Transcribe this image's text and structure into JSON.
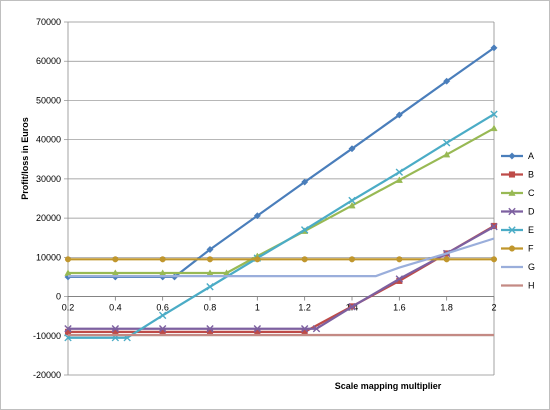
{
  "chart_data": {
    "type": "line",
    "title": "",
    "xlabel": "Scale mapping multiplier",
    "ylabel": "Profit/loss in Euros",
    "xlim": [
      0.2,
      2
    ],
    "ylim": [
      -20000,
      70000
    ],
    "x_ticks": [
      "0.2",
      "0.4",
      "0.6",
      "0.8",
      "1",
      "1.2",
      "1.4",
      "1.6",
      "1.8",
      "2"
    ],
    "y_ticks": [
      "-20000",
      "-10000",
      "0",
      "10000",
      "20000",
      "30000",
      "40000",
      "50000",
      "60000",
      "70000"
    ],
    "x_tick_values": [
      0.2,
      0.4,
      0.6,
      0.8,
      1.0,
      1.2,
      1.4,
      1.6,
      1.8,
      2.0
    ],
    "y_tick_values": [
      -20000,
      -10000,
      0,
      10000,
      20000,
      30000,
      40000,
      50000,
      60000,
      70000
    ],
    "grid": "horizontal",
    "legend_position": "right",
    "series": [
      {
        "name": "A",
        "color": "#4a7ebb",
        "marker": "diamond",
        "points": [
          [
            0.2,
            5000
          ],
          [
            0.4,
            5000
          ],
          [
            0.6,
            5000
          ],
          [
            0.65,
            5000
          ],
          [
            0.8,
            12000
          ],
          [
            1.0,
            20600
          ],
          [
            1.2,
            29200
          ],
          [
            1.4,
            37700
          ],
          [
            1.6,
            46300
          ],
          [
            1.8,
            54900
          ],
          [
            2.0,
            63400
          ]
        ]
      },
      {
        "name": "B",
        "color": "#be4b48",
        "marker": "square",
        "points": [
          [
            0.2,
            -9000
          ],
          [
            0.4,
            -9000
          ],
          [
            0.6,
            -9000
          ],
          [
            0.8,
            -9000
          ],
          [
            1.0,
            -9000
          ],
          [
            1.2,
            -9000
          ],
          [
            1.4,
            -2500
          ],
          [
            1.6,
            4000
          ],
          [
            1.8,
            11000
          ],
          [
            2.0,
            18000
          ]
        ]
      },
      {
        "name": "C",
        "color": "#98b954",
        "marker": "triangle",
        "points": [
          [
            0.2,
            6000
          ],
          [
            0.4,
            6000
          ],
          [
            0.6,
            6000
          ],
          [
            0.8,
            6000
          ],
          [
            0.87,
            6000
          ],
          [
            1.0,
            10300
          ],
          [
            1.2,
            16700
          ],
          [
            1.4,
            23200
          ],
          [
            1.6,
            29700
          ],
          [
            1.8,
            36200
          ],
          [
            2.0,
            42900
          ]
        ]
      },
      {
        "name": "D",
        "color": "#7d60a0",
        "marker": "x",
        "points": [
          [
            0.2,
            -8200
          ],
          [
            0.4,
            -8200
          ],
          [
            0.6,
            -8200
          ],
          [
            0.8,
            -8200
          ],
          [
            1.0,
            -8200
          ],
          [
            1.2,
            -8200
          ],
          [
            1.25,
            -8200
          ],
          [
            1.4,
            -2600
          ],
          [
            1.6,
            4500
          ],
          [
            1.8,
            11000
          ],
          [
            2.0,
            17800
          ]
        ]
      },
      {
        "name": "E",
        "color": "#4bacc6",
        "marker": "x",
        "points": [
          [
            0.2,
            -10500
          ],
          [
            0.4,
            -10500
          ],
          [
            0.45,
            -10500
          ],
          [
            0.6,
            -4800
          ],
          [
            0.8,
            2500
          ],
          [
            1.0,
            9800
          ],
          [
            1.2,
            17000
          ],
          [
            1.4,
            24500
          ],
          [
            1.6,
            31700
          ],
          [
            1.8,
            39200
          ],
          [
            2.0,
            46500
          ]
        ]
      },
      {
        "name": "F",
        "color": "#c0962c",
        "marker": "circle",
        "points": [
          [
            0.2,
            9500
          ],
          [
            0.4,
            9500
          ],
          [
            0.6,
            9500
          ],
          [
            0.8,
            9500
          ],
          [
            1.0,
            9500
          ],
          [
            1.2,
            9500
          ],
          [
            1.4,
            9500
          ],
          [
            1.6,
            9500
          ],
          [
            1.8,
            9500
          ],
          [
            2.0,
            9500
          ]
        ]
      },
      {
        "name": "G",
        "color": "#9aaedb",
        "marker": "line",
        "points": [
          [
            0.2,
            5200
          ],
          [
            0.4,
            5200
          ],
          [
            0.6,
            5200
          ],
          [
            0.8,
            5200
          ],
          [
            1.0,
            5200
          ],
          [
            1.2,
            5200
          ],
          [
            1.4,
            5200
          ],
          [
            1.5,
            5200
          ],
          [
            1.6,
            7400
          ],
          [
            1.8,
            11000
          ],
          [
            2.0,
            14800
          ]
        ]
      },
      {
        "name": "H",
        "color": "#c48a84",
        "marker": "line",
        "points": [
          [
            0.2,
            -9800
          ],
          [
            2.0,
            -9800
          ]
        ]
      }
    ]
  }
}
